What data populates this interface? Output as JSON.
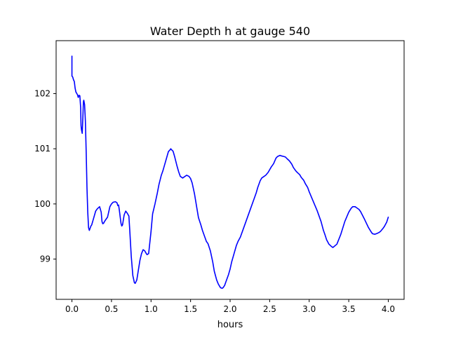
{
  "chart_data": {
    "type": "line",
    "title": "Water Depth h at gauge 540",
    "xlabel": "hours",
    "ylabel": "",
    "xlim": [
      -0.2,
      4.2
    ],
    "ylim": [
      98.27,
      102.96
    ],
    "xticks": [
      0.0,
      0.5,
      1.0,
      1.5,
      2.0,
      2.5,
      3.0,
      3.5,
      4.0
    ],
    "xtick_labels": [
      "0.0",
      "0.5",
      "1.0",
      "1.5",
      "2.0",
      "2.5",
      "3.0",
      "3.5",
      "4.0"
    ],
    "yticks": [
      99,
      100,
      101,
      102
    ],
    "ytick_labels": [
      "99",
      "100",
      "101",
      "102"
    ],
    "grid": false,
    "series": [
      {
        "color": "#0000ff",
        "x": [
          0.0,
          0.0,
          0.01,
          0.02,
          0.03,
          0.04,
          0.05,
          0.07,
          0.08,
          0.09,
          0.1,
          0.11,
          0.115,
          0.12,
          0.13,
          0.14,
          0.145,
          0.15,
          0.16,
          0.17,
          0.18,
          0.19,
          0.2,
          0.21,
          0.22,
          0.23,
          0.24,
          0.25,
          0.27,
          0.3,
          0.32,
          0.35,
          0.37,
          0.38,
          0.39,
          0.4,
          0.42,
          0.45,
          0.48,
          0.5,
          0.52,
          0.55,
          0.57,
          0.58,
          0.59,
          0.6,
          0.62,
          0.63,
          0.64,
          0.66,
          0.68,
          0.7,
          0.72,
          0.73,
          0.74,
          0.75,
          0.77,
          0.79,
          0.8,
          0.82,
          0.84,
          0.86,
          0.88,
          0.9,
          0.92,
          0.94,
          0.95,
          0.97,
          1.0,
          1.02,
          1.05,
          1.08,
          1.1,
          1.13,
          1.15,
          1.17,
          1.2,
          1.22,
          1.24,
          1.25,
          1.26,
          1.27,
          1.28,
          1.3,
          1.33,
          1.35,
          1.37,
          1.4,
          1.43,
          1.45,
          1.48,
          1.5,
          1.52,
          1.55,
          1.58,
          1.6,
          1.63,
          1.65,
          1.68,
          1.7,
          1.72,
          1.75,
          1.78,
          1.8,
          1.83,
          1.85,
          1.87,
          1.88,
          1.9,
          1.91,
          1.93,
          1.95,
          1.98,
          2.0,
          2.02,
          2.05,
          2.08,
          2.1,
          2.13,
          2.15,
          2.2,
          2.25,
          2.3,
          2.33,
          2.35,
          2.38,
          2.4,
          2.43,
          2.45,
          2.48,
          2.5,
          2.52,
          2.55,
          2.58,
          2.6,
          2.63,
          2.65,
          2.68,
          2.7,
          2.72,
          2.75,
          2.78,
          2.8,
          2.83,
          2.85,
          2.88,
          2.9,
          2.93,
          2.95,
          2.98,
          3.0,
          3.05,
          3.1,
          3.15,
          3.18,
          3.2,
          3.22,
          3.25,
          3.28,
          3.3,
          3.35,
          3.4,
          3.45,
          3.5,
          3.53,
          3.55,
          3.58,
          3.6,
          3.63,
          3.65,
          3.7,
          3.75,
          3.78,
          3.8,
          3.83,
          3.85,
          3.88,
          3.9,
          3.93,
          3.95,
          3.98,
          4.0
        ],
        "y": [
          102.68,
          102.32,
          102.3,
          102.25,
          102.22,
          102.1,
          102.03,
          101.98,
          101.93,
          101.97,
          101.96,
          101.75,
          101.42,
          101.35,
          101.28,
          101.65,
          101.85,
          101.88,
          101.8,
          101.5,
          100.95,
          100.3,
          99.85,
          99.57,
          99.52,
          99.56,
          99.6,
          99.62,
          99.72,
          99.87,
          99.91,
          99.95,
          99.85,
          99.68,
          99.64,
          99.65,
          99.7,
          99.76,
          99.95,
          100.0,
          100.03,
          100.04,
          100.02,
          99.97,
          99.98,
          99.88,
          99.65,
          99.6,
          99.62,
          99.8,
          99.87,
          99.83,
          99.78,
          99.55,
          99.3,
          99.05,
          98.7,
          98.57,
          98.56,
          98.62,
          98.8,
          98.98,
          99.1,
          99.17,
          99.15,
          99.1,
          99.08,
          99.1,
          99.5,
          99.82,
          100.0,
          100.2,
          100.35,
          100.52,
          100.6,
          100.7,
          100.85,
          100.95,
          100.98,
          101.0,
          100.98,
          100.97,
          100.95,
          100.85,
          100.68,
          100.58,
          100.5,
          100.47,
          100.5,
          100.52,
          100.5,
          100.46,
          100.38,
          100.18,
          99.92,
          99.75,
          99.62,
          99.52,
          99.4,
          99.32,
          99.28,
          99.15,
          98.95,
          98.78,
          98.62,
          98.55,
          98.5,
          98.48,
          98.47,
          98.48,
          98.52,
          98.6,
          98.72,
          98.82,
          98.95,
          99.1,
          99.25,
          99.32,
          99.4,
          99.48,
          99.68,
          99.88,
          100.08,
          100.2,
          100.3,
          100.42,
          100.47,
          100.5,
          100.52,
          100.57,
          100.62,
          100.67,
          100.73,
          100.83,
          100.86,
          100.88,
          100.87,
          100.86,
          100.85,
          100.82,
          100.78,
          100.72,
          100.66,
          100.6,
          100.57,
          100.53,
          100.48,
          100.43,
          100.37,
          100.3,
          100.22,
          100.05,
          99.88,
          99.68,
          99.52,
          99.44,
          99.35,
          99.27,
          99.23,
          99.21,
          99.27,
          99.45,
          99.68,
          99.85,
          99.92,
          99.95,
          99.95,
          99.93,
          99.9,
          99.86,
          99.72,
          99.57,
          99.5,
          99.46,
          99.45,
          99.46,
          99.48,
          99.5,
          99.55,
          99.59,
          99.67,
          99.76
        ]
      }
    ]
  }
}
